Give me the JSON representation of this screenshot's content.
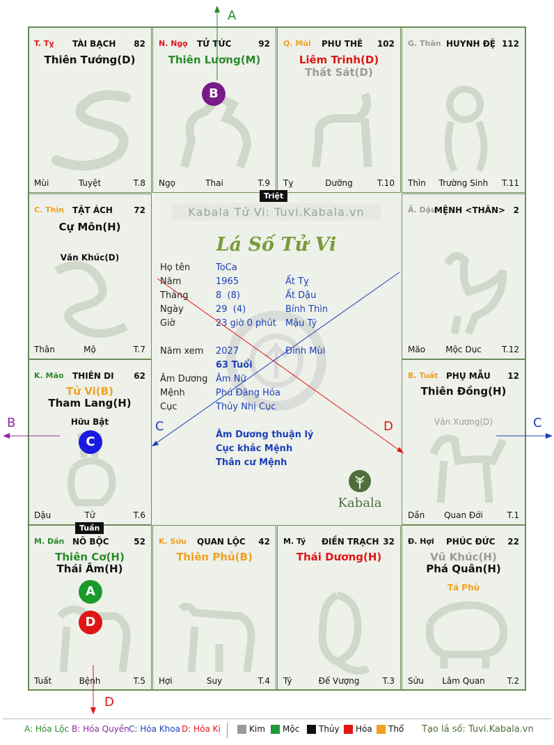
{
  "watermark": "Kabala Tử Vi: Tuvi.Kabala.vn",
  "title": "Lá Số Tử Vi",
  "logo_text": "Kabala",
  "center_tags": {
    "triet": "Triệt",
    "tuan": "Tuần"
  },
  "info": {
    "ho_ten_label": "Họ tên",
    "ho_ten": "ToCa",
    "nam_label": "Năm",
    "nam": "1965",
    "nam_can_chi": "Ất Tỵ",
    "thang_label": "Tháng",
    "thang": "8  (8)",
    "thang_can_chi": "Ất Dậu",
    "ngay_label": "Ngày",
    "ngay": "29  (4)",
    "ngay_can_chi": "Bính Thìn",
    "gio_label": "Giờ",
    "gio": "23 giờ 0 phút",
    "gio_can_chi": "Mậu Tý",
    "nam_xem_label": "Năm xem",
    "nam_xem": "2027",
    "nam_xem_can_chi": "Đinh Mùi",
    "tuoi": "63 Tuổi",
    "am_duong_label": "Âm Dương",
    "am_duong": "Âm Nữ",
    "menh_label": "Mệnh",
    "menh": "Phú Đăng Hỏa",
    "cuc_label": "Cục",
    "cuc": "Thủy Nhị Cục",
    "note1": "Âm Dương thuận lý",
    "note2": "Cục khắc Mệnh",
    "note3": "Thân cư Mệnh"
  },
  "palaces": {
    "ty": {
      "can": "T. Tỵ",
      "can_color": "#e01515",
      "name": "TÀI BẠCH",
      "num": "82",
      "main": "Thiên Tướng(D)",
      "main_color": "#111111",
      "branch": "Mùi",
      "stage": "Tuyệt",
      "age": "T.8"
    },
    "ngo": {
      "can": "N. Ngọ",
      "can_color": "#e01515",
      "name": "TỬ TỨC",
      "num": "92",
      "main": "Thiên Lương(M)",
      "main_color": "#2a8a2a",
      "branch": "Ngọ",
      "stage": "Thai",
      "age": "T.9"
    },
    "mui": {
      "can": "Q. Mùi",
      "can_color": "#f0a020",
      "name": "PHU THÊ",
      "num": "102",
      "main": "Liêm Trinh(D)",
      "main_color": "#e01515",
      "main2": "Thất Sát(D)",
      "main2_color": "#9a9a9a",
      "branch": "Tỵ",
      "stage": "Dưỡng",
      "age": "T.10"
    },
    "than": {
      "can": "G. Thân",
      "can_color": "#9a9a9a",
      "name": "HUYNH ĐỆ",
      "num": "112",
      "branch": "Thìn",
      "stage": "Trường Sinh",
      "age": "T.11"
    },
    "thin": {
      "can": "C. Thìn",
      "can_color": "#f0a020",
      "name": "TẬT ÁCH",
      "num": "72",
      "main": "Cự Môn(H)",
      "main_color": "#111111",
      "minor": "Văn Khúc(D)",
      "minor_color": "#111111",
      "branch": "Thân",
      "stage": "Mộ",
      "age": "T.7"
    },
    "dau": {
      "can": "Ấ. Dậu",
      "can_color": "#9a9a9a",
      "name": "MỆNH <THÂN>",
      "num": "2",
      "branch": "Mão",
      "stage": "Mộc Dục",
      "age": "T.12"
    },
    "mao": {
      "can": "K. Mão",
      "can_color": "#2a8a2a",
      "name": "THIÊN DI",
      "num": "62",
      "main": "Tử Vi(B)",
      "main_color": "#f0a020",
      "main2": "Tham Lang(H)",
      "main2_color": "#111111",
      "minor": "Hữu Bật",
      "minor_color": "#111111",
      "branch": "Dậu",
      "stage": "Tử",
      "age": "T.6"
    },
    "tuat": {
      "can": "B. Tuất",
      "can_color": "#f0a020",
      "name": "PHỤ MẪU",
      "num": "12",
      "main": "Thiên Đồng(H)",
      "main_color": "#111111",
      "minor": "Văn Xương(D)",
      "minor_color": "#9a9a9a",
      "branch": "Dần",
      "stage": "Quan Đới",
      "age": "T.1"
    },
    "dan": {
      "can": "M. Dần",
      "can_color": "#2a8a2a",
      "name": "NÔ BỘC",
      "num": "52",
      "main": "Thiên Cơ(H)",
      "main_color": "#2a8a2a",
      "main2": "Thái Âm(H)",
      "main2_color": "#111111",
      "branch": "Tuất",
      "stage": "Bệnh",
      "age": "T.5"
    },
    "suu": {
      "can": "K. Sửu",
      "can_color": "#f0a020",
      "name": "QUAN LỘC",
      "num": "42",
      "main": "Thiên Phủ(B)",
      "main_color": "#f0a020",
      "branch": "Hợi",
      "stage": "Suy",
      "age": "T.4"
    },
    "tys": {
      "can": "M. Tý",
      "can_color": "#111111",
      "name": "ĐIỀN TRẠCH",
      "num": "32",
      "main": "Thái Dương(H)",
      "main_color": "#e01515",
      "branch": "Tý",
      "stage": "Đế Vượng",
      "age": "T.3"
    },
    "hoi": {
      "can": "Đ. Hợi",
      "can_color": "#111111",
      "name": "PHÚC ĐỨC",
      "num": "22",
      "main": "Vũ Khúc(H)",
      "main_color": "#9a9a9a",
      "main2": "Phá Quân(H)",
      "main2_color": "#111111",
      "minor": "Tả Phù",
      "minor_color": "#f0a020",
      "branch": "Sửu",
      "stage": "Lâm Quan",
      "age": "T.2"
    }
  },
  "badges": {
    "A": "A",
    "B": "B",
    "C": "C",
    "D": "D"
  },
  "arrows": {
    "A": "A",
    "B": "B",
    "C": "C",
    "D": "D"
  },
  "legend": {
    "a": "A: Hóa Lộc",
    "b": "B: Hóa Quyền",
    "c": "C: Hóa Khoa",
    "d": "D: Hóa Kị",
    "kim": "Kim",
    "moc": "Mộc",
    "thuy": "Thủy",
    "hoa": "Hỏa",
    "tho": "Thổ",
    "site": "Tạo lá số: Tuvi.Kabala.vn"
  },
  "colors": {
    "kim": "#9a9a9a",
    "moc": "#1e9a3a",
    "thuy": "#111111",
    "hoa": "#e01515",
    "tho": "#f0a020",
    "border": "#6a8a55"
  }
}
